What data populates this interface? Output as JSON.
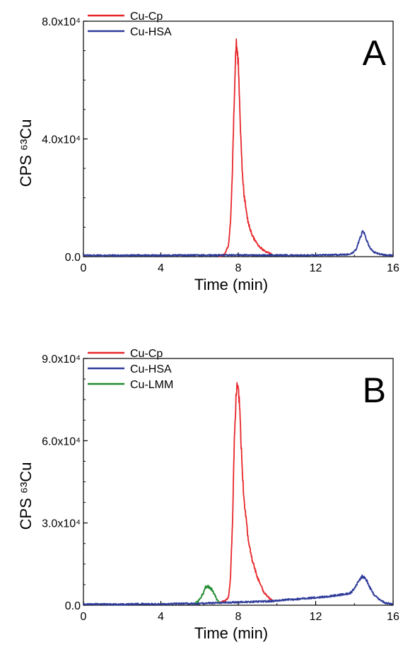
{
  "chart_data": [
    {
      "type": "line",
      "panel": "A",
      "xlabel": "Time (min)",
      "ylabel": "CPS ⁶³Cu",
      "xlim": [
        0,
        16
      ],
      "ylim": [
        0,
        80000
      ],
      "xticks": [
        0,
        4,
        8,
        12,
        16
      ],
      "xtick_labels": [
        "0",
        "4",
        "8",
        "12",
        "16"
      ],
      "yticks": [
        0,
        40000,
        80000
      ],
      "ytick_labels": [
        "0.0",
        "4.0x10⁴",
        "8.0x10⁴"
      ],
      "grid": false,
      "legend_position": "top-left",
      "series": [
        {
          "name": "Cu-Cp",
          "color": "#e8262a",
          "x": [
            7.0,
            7.3,
            7.5,
            7.6,
            7.7,
            7.8,
            7.9,
            8.0,
            8.1,
            8.2,
            8.3,
            8.5,
            8.7,
            9.0,
            9.3,
            9.6,
            9.8
          ],
          "y": [
            0,
            800,
            4000,
            12000,
            30000,
            55000,
            73500,
            66000,
            45000,
            30000,
            21000,
            12000,
            7500,
            4000,
            2200,
            1200,
            500
          ]
        },
        {
          "name": "Cu-HSA",
          "color": "#2e3b9a",
          "x": [
            0,
            1,
            2,
            3,
            4,
            5,
            6,
            7.0,
            9.8,
            10.5,
            11,
            12,
            13,
            13.8,
            14.1,
            14.3,
            14.45,
            14.6,
            14.8,
            15.0,
            15.5,
            16
          ],
          "y": [
            500,
            400,
            400,
            500,
            400,
            500,
            500,
            500,
            500,
            500,
            500,
            500,
            600,
            800,
            2500,
            6500,
            9000,
            6000,
            3000,
            1500,
            600,
            400
          ]
        }
      ]
    },
    {
      "type": "line",
      "panel": "B",
      "xlabel": "Time (min)",
      "ylabel": "CPS ⁶³Cu",
      "xlim": [
        0,
        16
      ],
      "ylim": [
        0,
        90000
      ],
      "xticks": [
        0,
        4,
        8,
        12,
        16
      ],
      "xtick_labels": [
        "0",
        "4",
        "8",
        "12",
        "16"
      ],
      "yticks": [
        0,
        30000,
        60000,
        90000
      ],
      "ytick_labels": [
        "0.0",
        "3.0x10⁴",
        "6.0x10⁴",
        "9.0x10⁴"
      ],
      "grid": false,
      "legend_position": "top-left",
      "series": [
        {
          "name": "Cu-Cp",
          "color": "#e8262a",
          "x": [
            7.0,
            7.3,
            7.5,
            7.6,
            7.7,
            7.8,
            7.9,
            8.0,
            8.1,
            8.2,
            8.3,
            8.5,
            8.7,
            9.0,
            9.3,
            9.6,
            9.8
          ],
          "y": [
            1000,
            1500,
            3000,
            10000,
            30000,
            60000,
            78000,
            80000,
            68000,
            50000,
            38000,
            25000,
            17000,
            10000,
            5000,
            2500,
            1500
          ]
        },
        {
          "name": "Cu-HSA",
          "color": "#2e3b9a",
          "x": [
            0,
            1,
            2,
            3,
            4,
            5,
            5.8,
            9.8,
            10.5,
            11,
            11.5,
            12,
            12.5,
            13,
            13.5,
            13.8,
            14.0,
            14.2,
            14.4,
            14.6,
            14.8,
            15.0,
            15.3,
            15.6,
            16
          ],
          "y": [
            300,
            400,
            300,
            500,
            400,
            600,
            600,
            1500,
            2000,
            2200,
            2500,
            2800,
            3000,
            3500,
            4000,
            4500,
            6000,
            8500,
            10500,
            9500,
            6500,
            4000,
            2000,
            800,
            500
          ]
        },
        {
          "name": "Cu-LMM",
          "color": "#1f8b2f",
          "x": [
            5.8,
            6.0,
            6.2,
            6.3,
            6.4,
            6.5,
            6.6,
            6.7,
            6.8,
            6.9,
            7.0
          ],
          "y": [
            800,
            2000,
            4500,
            6500,
            7000,
            6500,
            6000,
            5000,
            3500,
            2000,
            1200
          ]
        }
      ]
    }
  ]
}
